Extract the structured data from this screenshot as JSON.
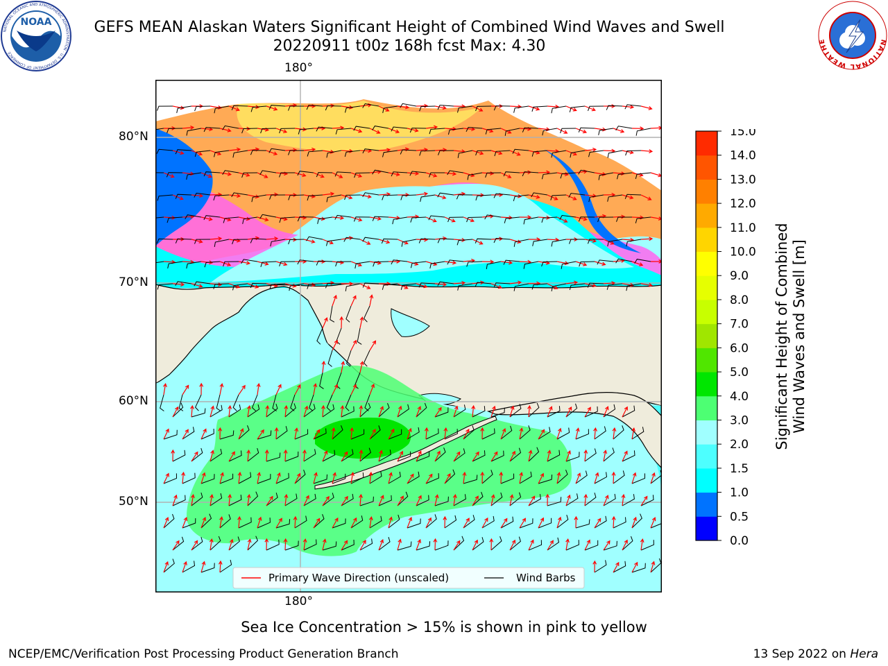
{
  "header": {
    "title_line1": "GEFS MEAN Alaskan Waters Significant Height of Combined Wind Waves and Swell",
    "title_line2": "20220911 t00z 168h fcst   Max: 4.30"
  },
  "logos": {
    "left_name": "noaa-logo",
    "left_text": "NOAA",
    "left_ring_text": "NATIONAL OCEANIC AND ATMOSPHERIC ADMINISTRATION · U.S. DEPARTMENT OF COMMERCE",
    "right_name": "nws-logo",
    "right_ring_text": "NATIONAL WEATHER SERVICE"
  },
  "map": {
    "lon_label_top": "180°",
    "lon_label_bottom": "180°",
    "lat_labels": [
      {
        "text": "80°N"
      },
      {
        "text": "70°N"
      },
      {
        "text": "60°N"
      },
      {
        "text": "50°N"
      }
    ],
    "legend": {
      "wave_label": "Primary Wave Direction (unscaled)",
      "wind_label": "Wind Barbs"
    },
    "colors": {
      "land": "#efecdc",
      "wave_arrow": "#ff0000",
      "barb": "#000000"
    }
  },
  "colorbar": {
    "label": "Significant Height of Combined\nWind Waves and Swell [m]",
    "label_line1": "Significant Height of Combined",
    "label_line2": "Wind Waves and Swell [m]",
    "ticks": [
      "0.0",
      "0.5",
      "1.0",
      "1.5",
      "2.0",
      "3.0",
      "4.0",
      "5.0",
      "6.0",
      "7.0",
      "8.0",
      "9.0",
      "10.0",
      "11.0",
      "12.0",
      "13.0",
      "14.0",
      "15.0"
    ],
    "colors": [
      "#0000ff",
      "#0073ff",
      "#00ffff",
      "#4dffff",
      "#a0ffff",
      "#4dff73",
      "#00e600",
      "#50e600",
      "#a0e600",
      "#c8ff00",
      "#e6ff00",
      "#ffff00",
      "#ffd500",
      "#ffaa00",
      "#ff8000",
      "#ff5500",
      "#ff2b00"
    ]
  },
  "footer": {
    "sea_ice_note": "Sea Ice Concentration > 15% is shown in pink to yellow",
    "left_text": "NCEP/EMC/Verification Post Processing Product Generation Branch",
    "right_date": "13 Sep 2022 on ",
    "right_machine": "Hera"
  }
}
